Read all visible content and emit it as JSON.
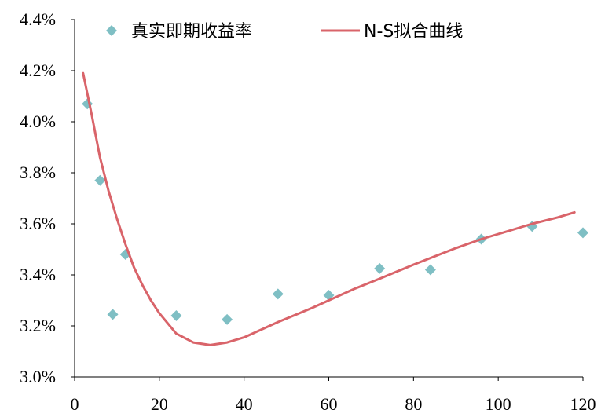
{
  "chart_data": {
    "type": "scatter",
    "title": "",
    "xlabel": "",
    "ylabel": "",
    "xlim": [
      0,
      120
    ],
    "ylim": [
      3.0,
      4.4
    ],
    "x_ticks": [
      "0",
      "20",
      "40",
      "60",
      "80",
      "100",
      "120"
    ],
    "y_ticks": [
      "3.0%",
      "3.2%",
      "3.4%",
      "3.6%",
      "3.8%",
      "4.0%",
      "4.2%",
      "4.4%"
    ],
    "grid": false,
    "legend_position": "top",
    "series": [
      {
        "name": "真实即期收益率",
        "kind": "scatter",
        "marker": "diamond",
        "color": "#7FBFC4",
        "x": [
          3,
          6,
          9,
          12,
          24,
          36,
          48,
          60,
          72,
          84,
          96,
          108,
          120
        ],
        "y": [
          4.07,
          3.77,
          3.245,
          3.48,
          3.24,
          3.225,
          3.325,
          3.32,
          3.425,
          3.42,
          3.54,
          3.59,
          3.565
        ]
      },
      {
        "name": "N-S拟合曲线",
        "kind": "line",
        "color": "#D9646A",
        "x": [
          2,
          4,
          6,
          8,
          10,
          12,
          14,
          16,
          18,
          20,
          24,
          28,
          32,
          36,
          40,
          48,
          56,
          60,
          66,
          72,
          80,
          90,
          96,
          100,
          108,
          114,
          118
        ],
        "y": [
          4.19,
          4.03,
          3.86,
          3.73,
          3.62,
          3.52,
          3.43,
          3.36,
          3.3,
          3.25,
          3.17,
          3.135,
          3.125,
          3.135,
          3.155,
          3.215,
          3.27,
          3.3,
          3.345,
          3.385,
          3.44,
          3.505,
          3.54,
          3.56,
          3.6,
          3.625,
          3.645
        ]
      }
    ]
  }
}
